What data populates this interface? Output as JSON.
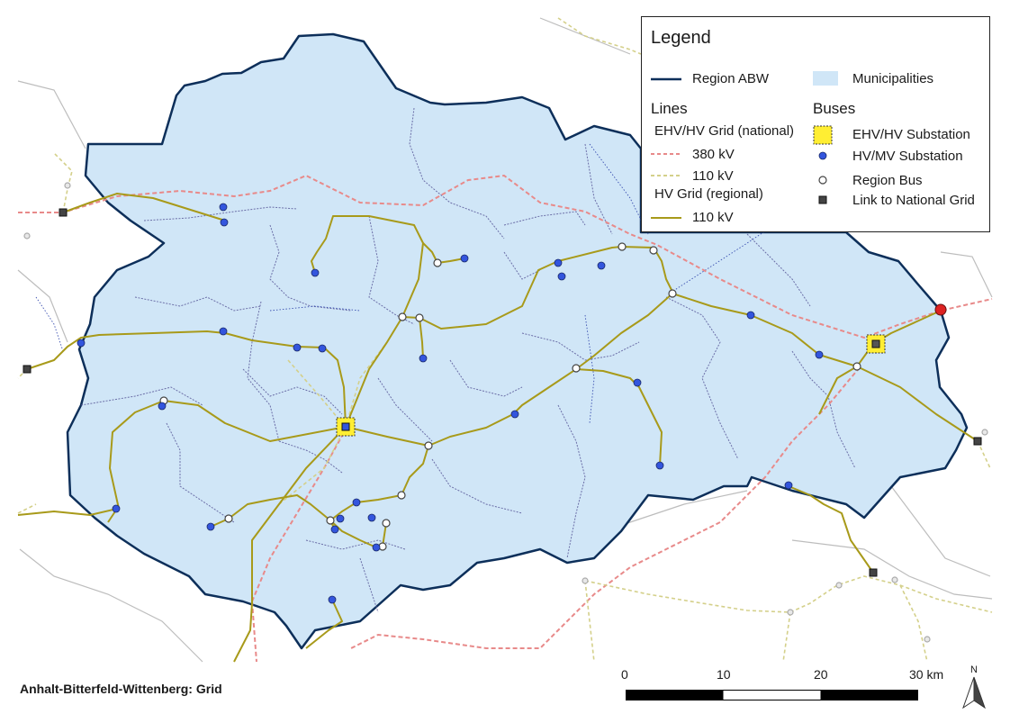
{
  "legend": {
    "title": "Legend",
    "region_label": "Region ABW",
    "municipalities_label": "Municipalities",
    "lines_header": "Lines",
    "buses_header": "Buses",
    "ehv_hv_national_label": "EHV/HV Grid (national)",
    "line_380_label": "380 kV",
    "line_110_national_label": "110 kV",
    "hv_regional_label": "HV Grid (regional)",
    "line_110_regional_label": "110 kV",
    "ehv_hv_substation_label": "EHV/HV Substation",
    "hv_mv_substation_label": "HV/MV Substation",
    "region_bus_label": "Region Bus",
    "link_national_label": "Link to National Grid"
  },
  "caption": "Anhalt-Bitterfeld-Wittenberg: Grid",
  "scale_bar": {
    "labels": [
      "0",
      "10",
      "20",
      "30 km"
    ]
  },
  "north_arrow": {
    "label": "N"
  },
  "colors": {
    "region_fill": "#d0e6f7",
    "region_border": "#0d2f5a",
    "line_380": "#e88a8a",
    "line_110_national": "#d4d08a",
    "line_110_regional": "#a89a1a",
    "hv_mv_substation": "#3355dd",
    "ehv_hv_substation": "#ffee33",
    "link_national": "#444444",
    "external_bus": "#dd2222"
  }
}
